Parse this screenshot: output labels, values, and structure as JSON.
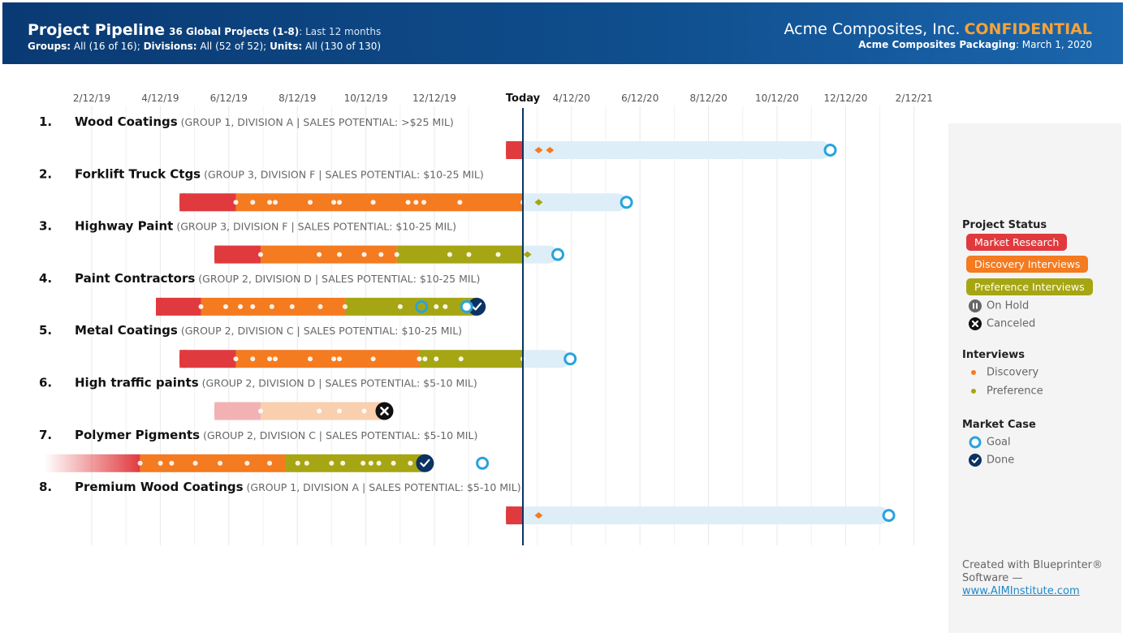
{
  "header": {
    "title": "Project Pipeline",
    "count_label": "36 Global Projects (1-8)",
    "period": ": Last 12 months",
    "groups_label": "Groups:",
    "groups_value": " All (16 of 16);",
    "divisions_label": "Divisions:",
    "divisions_value": " All (52 of 52);",
    "units_label": "Units:",
    "units_value": " All (130 of 130)",
    "company": "Acme Composites, Inc.",
    "confidential": "CONFIDENTIAL",
    "unit_name": "Acme Composites Packaging",
    "date": ": March 1, 2020"
  },
  "colors": {
    "market_research": "#e03a3e",
    "discovery": "#f47b20",
    "preference": "#a6a614",
    "future": "#ddeef9",
    "goal": "#29a3dc",
    "done": "#0b3262",
    "today_line": "#0b3262",
    "canceled_light_red": "#f2b2b4",
    "canceled_light_orange": "#f9cfae"
  },
  "chart_data": {
    "type": "gantt",
    "x_ticks": [
      "2/12/19",
      "4/12/19",
      "6/12/19",
      "8/12/19",
      "10/12/19",
      "12/12/19",
      "Today",
      "4/12/20",
      "6/12/20",
      "8/12/20",
      "10/12/20",
      "12/12/20",
      "2/12/21"
    ],
    "today": "2020-03-01",
    "rows": [
      {
        "index": "1.",
        "name": "Wood Coatings",
        "meta": "(GROUP 1, DIVISION A | SALES POTENTIAL: >$25 MIL)",
        "status": "active",
        "marker": "goal",
        "start": "2020-02-15",
        "goal": "2020-11-29",
        "phases": [
          {
            "phase": "market_research",
            "from": "2020-02-15",
            "to": "2020-03-01"
          }
        ],
        "interview_dots": [],
        "future_interviews": [
          {
            "type": "discovery",
            "date": "2020-03-15"
          },
          {
            "type": "discovery",
            "date": "2020-03-25"
          }
        ]
      },
      {
        "index": "2.",
        "name": "Forklift Truck Ctgs",
        "meta": "(GROUP 3, DIVISION F | SALES POTENTIAL: $10-25 MIL)",
        "status": "active",
        "marker": "goal",
        "start": "2019-05-01",
        "goal": "2020-06-01",
        "phases": [
          {
            "phase": "market_research",
            "from": "2019-05-01",
            "to": "2019-06-20"
          },
          {
            "phase": "discovery",
            "from": "2019-06-20",
            "to": "2020-03-01"
          }
        ],
        "interview_dots": [
          "2019-06-20",
          "2019-07-05",
          "2019-07-20",
          "2019-07-25",
          "2019-08-25",
          "2019-09-15",
          "2019-09-20",
          "2019-10-20",
          "2019-11-20",
          "2019-11-27",
          "2019-12-04",
          "2020-01-05",
          "2020-03-01"
        ],
        "future_interviews": [
          {
            "type": "preference",
            "date": "2020-03-15"
          }
        ]
      },
      {
        "index": "3.",
        "name": "Highway Paint",
        "meta": "(GROUP 3, DIVISION F | SALES POTENTIAL: $10-25 MIL)",
        "status": "active",
        "marker": "goal",
        "start": "2019-06-01",
        "goal": "2020-04-01",
        "phases": [
          {
            "phase": "market_research",
            "from": "2019-06-01",
            "to": "2019-07-12"
          },
          {
            "phase": "discovery",
            "from": "2019-07-12",
            "to": "2019-11-10"
          },
          {
            "phase": "preference",
            "from": "2019-11-10",
            "to": "2020-03-01"
          }
        ],
        "interview_dots": [
          "2019-07-12",
          "2019-09-02",
          "2019-09-20",
          "2019-10-12",
          "2019-10-27",
          "2019-11-10",
          "2019-12-27",
          "2020-01-13",
          "2020-02-08"
        ],
        "future_interviews": [
          {
            "type": "preference",
            "date": "2020-03-05"
          }
        ]
      },
      {
        "index": "4.",
        "name": "Paint Contractors",
        "meta": "(GROUP 2, DIVISION D | SALES POTENTIAL: $10-25 MIL)",
        "status": "done",
        "marker": "done",
        "start": "2019-04-10",
        "goal": "2020-01-11",
        "phases": [
          {
            "phase": "market_research",
            "from": "2019-04-10",
            "to": "2019-05-20"
          },
          {
            "phase": "discovery",
            "from": "2019-05-20",
            "to": "2019-09-25"
          },
          {
            "phase": "preference",
            "from": "2019-09-25",
            "to": "2020-01-20"
          }
        ],
        "interview_dots": [
          "2019-05-20",
          "2019-06-11",
          "2019-06-24",
          "2019-07-05",
          "2019-07-22",
          "2019-08-09",
          "2019-09-03",
          "2019-09-25",
          "2019-11-13",
          "2019-12-15",
          "2019-12-23"
        ],
        "goal_marker_date": "2019-12-02",
        "future_interviews": []
      },
      {
        "index": "5.",
        "name": "Metal Coatings",
        "meta": "(GROUP 2, DIVISION C | SALES POTENTIAL: $10-25 MIL)",
        "status": "active",
        "marker": "goal",
        "start": "2019-05-01",
        "goal": "2020-04-12",
        "phases": [
          {
            "phase": "market_research",
            "from": "2019-05-01",
            "to": "2019-06-20"
          },
          {
            "phase": "discovery",
            "from": "2019-06-20",
            "to": "2019-11-30"
          },
          {
            "phase": "preference",
            "from": "2019-11-30",
            "to": "2020-03-01"
          }
        ],
        "interview_dots": [
          "2019-06-20",
          "2019-07-05",
          "2019-07-20",
          "2019-07-25",
          "2019-08-25",
          "2019-09-15",
          "2019-09-20",
          "2019-10-20",
          "2019-11-30",
          "2019-12-05",
          "2019-12-15",
          "2020-01-06",
          "2020-03-01"
        ],
        "future_interviews": []
      },
      {
        "index": "6.",
        "name": "High traffic paints",
        "meta": "(GROUP 2, DIVISION D | SALES POTENTIAL: $5-10 MIL)",
        "status": "canceled",
        "marker": "canceled",
        "start": "2019-06-01",
        "end": "2019-10-30",
        "phases": [
          {
            "phase": "market_research",
            "from": "2019-06-01",
            "to": "2019-07-12"
          },
          {
            "phase": "discovery",
            "from": "2019-07-12",
            "to": "2019-10-30"
          }
        ],
        "interview_dots": [
          "2019-07-12",
          "2019-09-02",
          "2019-09-20",
          "2019-10-12"
        ],
        "future_interviews": []
      },
      {
        "index": "7.",
        "name": "Polymer Pigments",
        "meta": "(GROUP 2, DIVISION C | SALES POTENTIAL: $5-10 MIL)",
        "status": "done",
        "marker": "done",
        "start": "2019-01-01",
        "goal": "2020-01-25",
        "phases": [
          {
            "phase": "market_research",
            "from": "2019-01-01",
            "to": "2019-03-27"
          },
          {
            "phase": "discovery",
            "from": "2019-03-27",
            "to": "2019-08-03"
          },
          {
            "phase": "preference",
            "from": "2019-08-03",
            "to": "2019-12-05"
          }
        ],
        "interview_dots": [
          "2019-03-27",
          "2019-04-14",
          "2019-04-24",
          "2019-05-15",
          "2019-06-06",
          "2019-06-30",
          "2019-07-20",
          "2019-08-14",
          "2019-08-22",
          "2019-09-13",
          "2019-09-23",
          "2019-10-11",
          "2019-10-18",
          "2019-10-25",
          "2019-11-07",
          "2019-11-22"
        ],
        "done_marker_date": "2019-12-05",
        "future_interviews": []
      },
      {
        "index": "8.",
        "name": "Premium Wood Coatings",
        "meta": "(GROUP 1, DIVISION A | SALES POTENTIAL: $5-10 MIL)",
        "status": "active",
        "marker": "goal",
        "start": "2020-02-15",
        "goal": "2021-01-20",
        "phases": [
          {
            "phase": "market_research",
            "from": "2020-02-15",
            "to": "2020-03-01"
          }
        ],
        "interview_dots": [],
        "future_interviews": [
          {
            "type": "discovery",
            "date": "2020-03-15"
          }
        ]
      }
    ]
  },
  "legend": {
    "status_title": "Project Status",
    "market_research": "Market Research",
    "discovery_interviews": "Discovery Interviews",
    "preference_interviews": "Preference Interviews",
    "on_hold": "On Hold",
    "canceled": "Canceled",
    "interviews_title": "Interviews",
    "discovery": "Discovery",
    "preference": "Preference",
    "market_case_title": "Market Case",
    "goal": "Goal",
    "done": "Done"
  },
  "footer": {
    "text": "Created with Blueprinter® Software —",
    "link": "www.AIMInstitute.com"
  }
}
